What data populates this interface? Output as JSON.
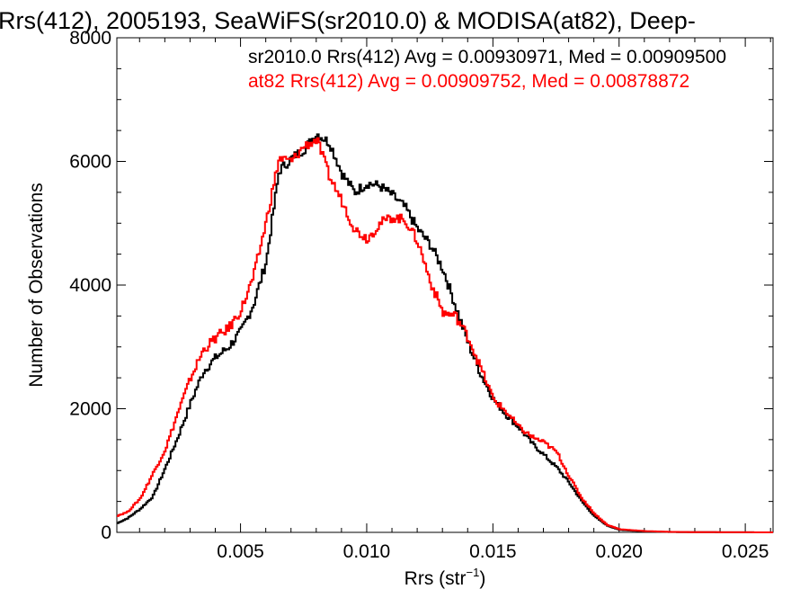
{
  "chart_data": {
    "type": "line",
    "title": "Rrs(412), 2005193, SeaWiFS(sr2010.0) & MODISA(at82), Deep-",
    "xlabel": "Rrs (str",
    "xlabel_sup": "−1",
    "xlabel_close": ")",
    "ylabel": "Number of Observations",
    "xlim": [
      0.0001,
      0.0261
    ],
    "ylim": [
      0,
      8000
    ],
    "xticks": [
      0.005,
      0.01,
      0.015,
      0.02,
      0.025
    ],
    "xtick_labels": [
      "0.005",
      "0.010",
      "0.015",
      "0.020",
      "0.025"
    ],
    "yticks": [
      0,
      2000,
      4000,
      6000,
      8000
    ],
    "ytick_labels": [
      "0",
      "2000",
      "4000",
      "6000",
      "8000"
    ],
    "grid": false,
    "legend_position": "top-right",
    "series": [
      {
        "name": "sr2010.0",
        "legend": "sr2010.0 Rrs(412) Avg = 0.00930971, Med = 0.00909500",
        "color": "#000000",
        "step": true,
        "points": [
          [
            0.0001,
            150
          ],
          [
            0.0005,
            230
          ],
          [
            0.001,
            380
          ],
          [
            0.0015,
            580
          ],
          [
            0.002,
            1050
          ],
          [
            0.0025,
            1550
          ],
          [
            0.003,
            2100
          ],
          [
            0.0035,
            2600
          ],
          [
            0.004,
            2830
          ],
          [
            0.0045,
            3000
          ],
          [
            0.005,
            3250
          ],
          [
            0.0055,
            3700
          ],
          [
            0.006,
            4400
          ],
          [
            0.0065,
            5850
          ],
          [
            0.007,
            6050
          ],
          [
            0.0075,
            6200
          ],
          [
            0.008,
            6450
          ],
          [
            0.0085,
            6300
          ],
          [
            0.009,
            5800
          ],
          [
            0.0095,
            5500
          ],
          [
            0.01,
            5650
          ],
          [
            0.0105,
            5600
          ],
          [
            0.011,
            5450
          ],
          [
            0.0115,
            5250
          ],
          [
            0.012,
            4900
          ],
          [
            0.0125,
            4650
          ],
          [
            0.013,
            4250
          ],
          [
            0.0135,
            3650
          ],
          [
            0.014,
            3050
          ],
          [
            0.0145,
            2550
          ],
          [
            0.015,
            2150
          ],
          [
            0.0155,
            1900
          ],
          [
            0.016,
            1700
          ],
          [
            0.0165,
            1450
          ],
          [
            0.017,
            1250
          ],
          [
            0.0175,
            1050
          ],
          [
            0.018,
            800
          ],
          [
            0.0185,
            500
          ],
          [
            0.019,
            260
          ],
          [
            0.0195,
            110
          ],
          [
            0.02,
            40
          ],
          [
            0.021,
            15
          ],
          [
            0.022,
            6
          ],
          [
            0.023,
            3
          ],
          [
            0.024,
            2
          ],
          [
            0.025,
            1
          ],
          [
            0.0261,
            0
          ]
        ]
      },
      {
        "name": "at82",
        "legend": "at82 Rrs(412) Avg = 0.00909752, Med = 0.00878872",
        "color": "#ff0000",
        "step": true,
        "points": [
          [
            0.0001,
            270
          ],
          [
            0.0005,
            330
          ],
          [
            0.001,
            550
          ],
          [
            0.0015,
            950
          ],
          [
            0.002,
            1350
          ],
          [
            0.0025,
            1950
          ],
          [
            0.003,
            2500
          ],
          [
            0.0035,
            2950
          ],
          [
            0.004,
            3150
          ],
          [
            0.0045,
            3300
          ],
          [
            0.005,
            3600
          ],
          [
            0.0055,
            4150
          ],
          [
            0.006,
            5050
          ],
          [
            0.0065,
            6050
          ],
          [
            0.007,
            6000
          ],
          [
            0.0075,
            6250
          ],
          [
            0.008,
            6350
          ],
          [
            0.0085,
            5750
          ],
          [
            0.009,
            5350
          ],
          [
            0.0095,
            4900
          ],
          [
            0.01,
            4750
          ],
          [
            0.0105,
            5000
          ],
          [
            0.011,
            5100
          ],
          [
            0.0115,
            5050
          ],
          [
            0.012,
            4700
          ],
          [
            0.0125,
            4050
          ],
          [
            0.013,
            3550
          ],
          [
            0.0135,
            3500
          ],
          [
            0.014,
            3150
          ],
          [
            0.0145,
            2650
          ],
          [
            0.015,
            2150
          ],
          [
            0.0155,
            1950
          ],
          [
            0.016,
            1700
          ],
          [
            0.0165,
            1550
          ],
          [
            0.017,
            1450
          ],
          [
            0.0175,
            1300
          ],
          [
            0.018,
            900
          ],
          [
            0.0185,
            550
          ],
          [
            0.019,
            300
          ],
          [
            0.0195,
            120
          ],
          [
            0.02,
            50
          ],
          [
            0.021,
            20
          ],
          [
            0.022,
            8
          ],
          [
            0.023,
            4
          ],
          [
            0.024,
            2
          ],
          [
            0.025,
            1
          ],
          [
            0.0261,
            0
          ]
        ]
      }
    ]
  }
}
